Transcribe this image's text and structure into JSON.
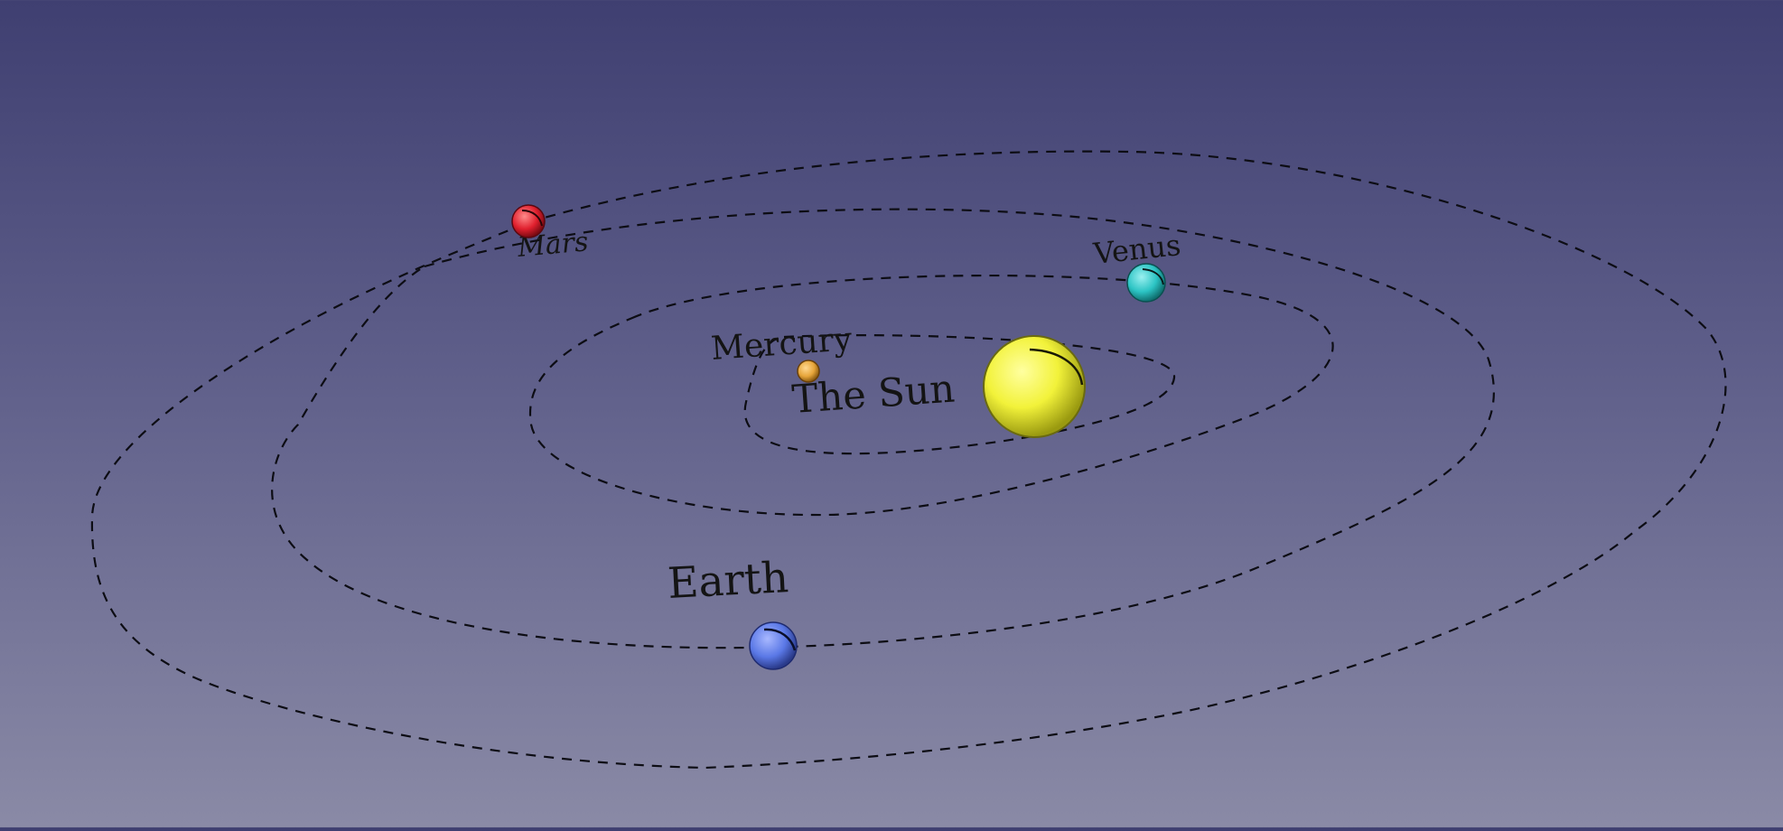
{
  "scene": {
    "background_top": "#3f3f71",
    "background_bottom": "#8a8aa6",
    "bodies": [
      {
        "id": "sun",
        "label": "The Sun",
        "color": "#f2f23a"
      },
      {
        "id": "mercury",
        "label": "Mercury",
        "color": "#e6a53a"
      },
      {
        "id": "venus",
        "label": "Venus",
        "color": "#2cc4c4"
      },
      {
        "id": "earth",
        "label": "Earth",
        "color": "#5a78e6"
      },
      {
        "id": "mars",
        "label": "Mars",
        "color": "#e0202e"
      }
    ]
  }
}
